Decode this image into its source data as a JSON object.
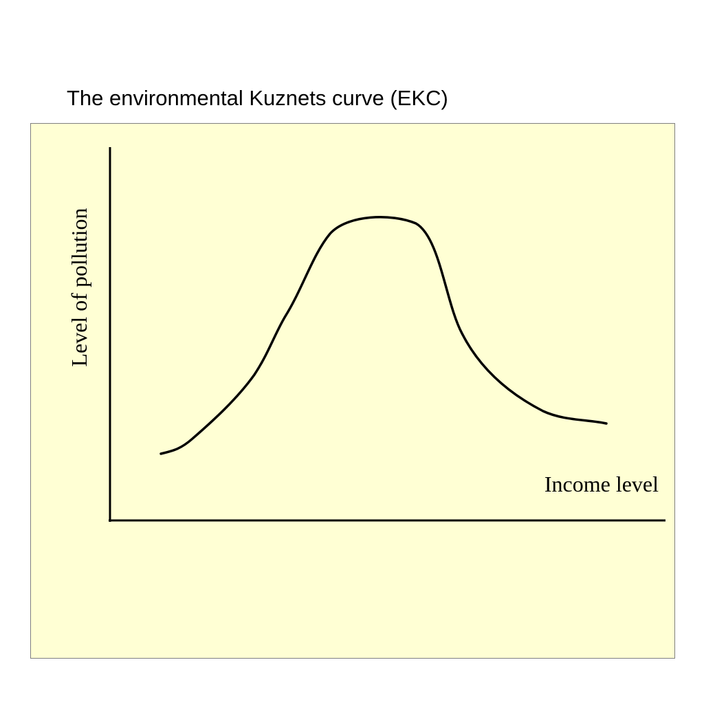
{
  "title": "The environmental Kuznets curve (EKC)",
  "y_axis_label": "Level of pollution",
  "x_axis_label": "Income level"
}
